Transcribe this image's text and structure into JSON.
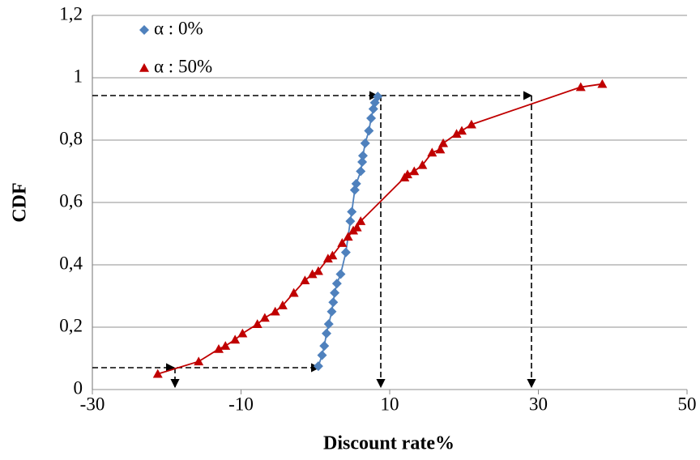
{
  "chart_data": {
    "type": "scatter",
    "xlabel": "Discount rate%",
    "ylabel": "CDF",
    "xlim": [
      -30,
      50
    ],
    "xticks": [
      -30,
      -10,
      10,
      30,
      50
    ],
    "ylim": [
      0,
      1.2
    ],
    "yticks": [
      0,
      {
        "value": 0.2,
        "label": "0,2"
      },
      {
        "value": 0.4,
        "label": "0,4"
      },
      {
        "value": 0.6,
        "label": "0,6"
      },
      {
        "value": 0.8,
        "label": "0,8"
      },
      1,
      {
        "value": 1.2,
        "label": "1,2"
      }
    ],
    "grid": true,
    "legend": "upper left",
    "series": [
      {
        "name": "α : 0%",
        "color": "#4f81bd",
        "marker": "diamond",
        "x": [
          0.4,
          0.9,
          1.2,
          1.5,
          1.8,
          2.2,
          2.4,
          2.6,
          2.9,
          3.4,
          4.1,
          4.7,
          4.9,
          5.3,
          5.5,
          6.1,
          6.3,
          6.4,
          6.7,
          7.2,
          7.5,
          7.8,
          8.0,
          8.4
        ],
        "values": [
          0.075,
          0.11,
          0.14,
          0.18,
          0.21,
          0.25,
          0.28,
          0.31,
          0.34,
          0.37,
          0.44,
          0.54,
          0.57,
          0.64,
          0.66,
          0.7,
          0.73,
          0.75,
          0.79,
          0.83,
          0.87,
          0.9,
          0.92,
          0.94
        ]
      },
      {
        "name": "α : 50%",
        "color": "#c00000",
        "marker": "triangle",
        "x": [
          -21.2,
          -15.7,
          -13,
          -12.1,
          -10.8,
          -9.8,
          -7.8,
          -6.8,
          -5.4,
          -4.4,
          -2.9,
          -1.4,
          -0.4,
          0.4,
          1.7,
          2.3,
          3.6,
          4.4,
          5.1,
          5.6,
          6.1,
          12,
          12.4,
          13.3,
          14.4,
          15.7,
          16.8,
          17.2,
          19,
          19.7,
          21,
          35.7,
          38.6
        ],
        "values": [
          0.05,
          0.09,
          0.13,
          0.14,
          0.16,
          0.18,
          0.21,
          0.23,
          0.25,
          0.27,
          0.31,
          0.35,
          0.37,
          0.38,
          0.42,
          0.43,
          0.47,
          0.49,
          0.51,
          0.52,
          0.54,
          0.68,
          0.69,
          0.7,
          0.72,
          0.76,
          0.77,
          0.79,
          0.82,
          0.83,
          0.85,
          0.97,
          0.98
        ]
      }
    ]
  }
}
